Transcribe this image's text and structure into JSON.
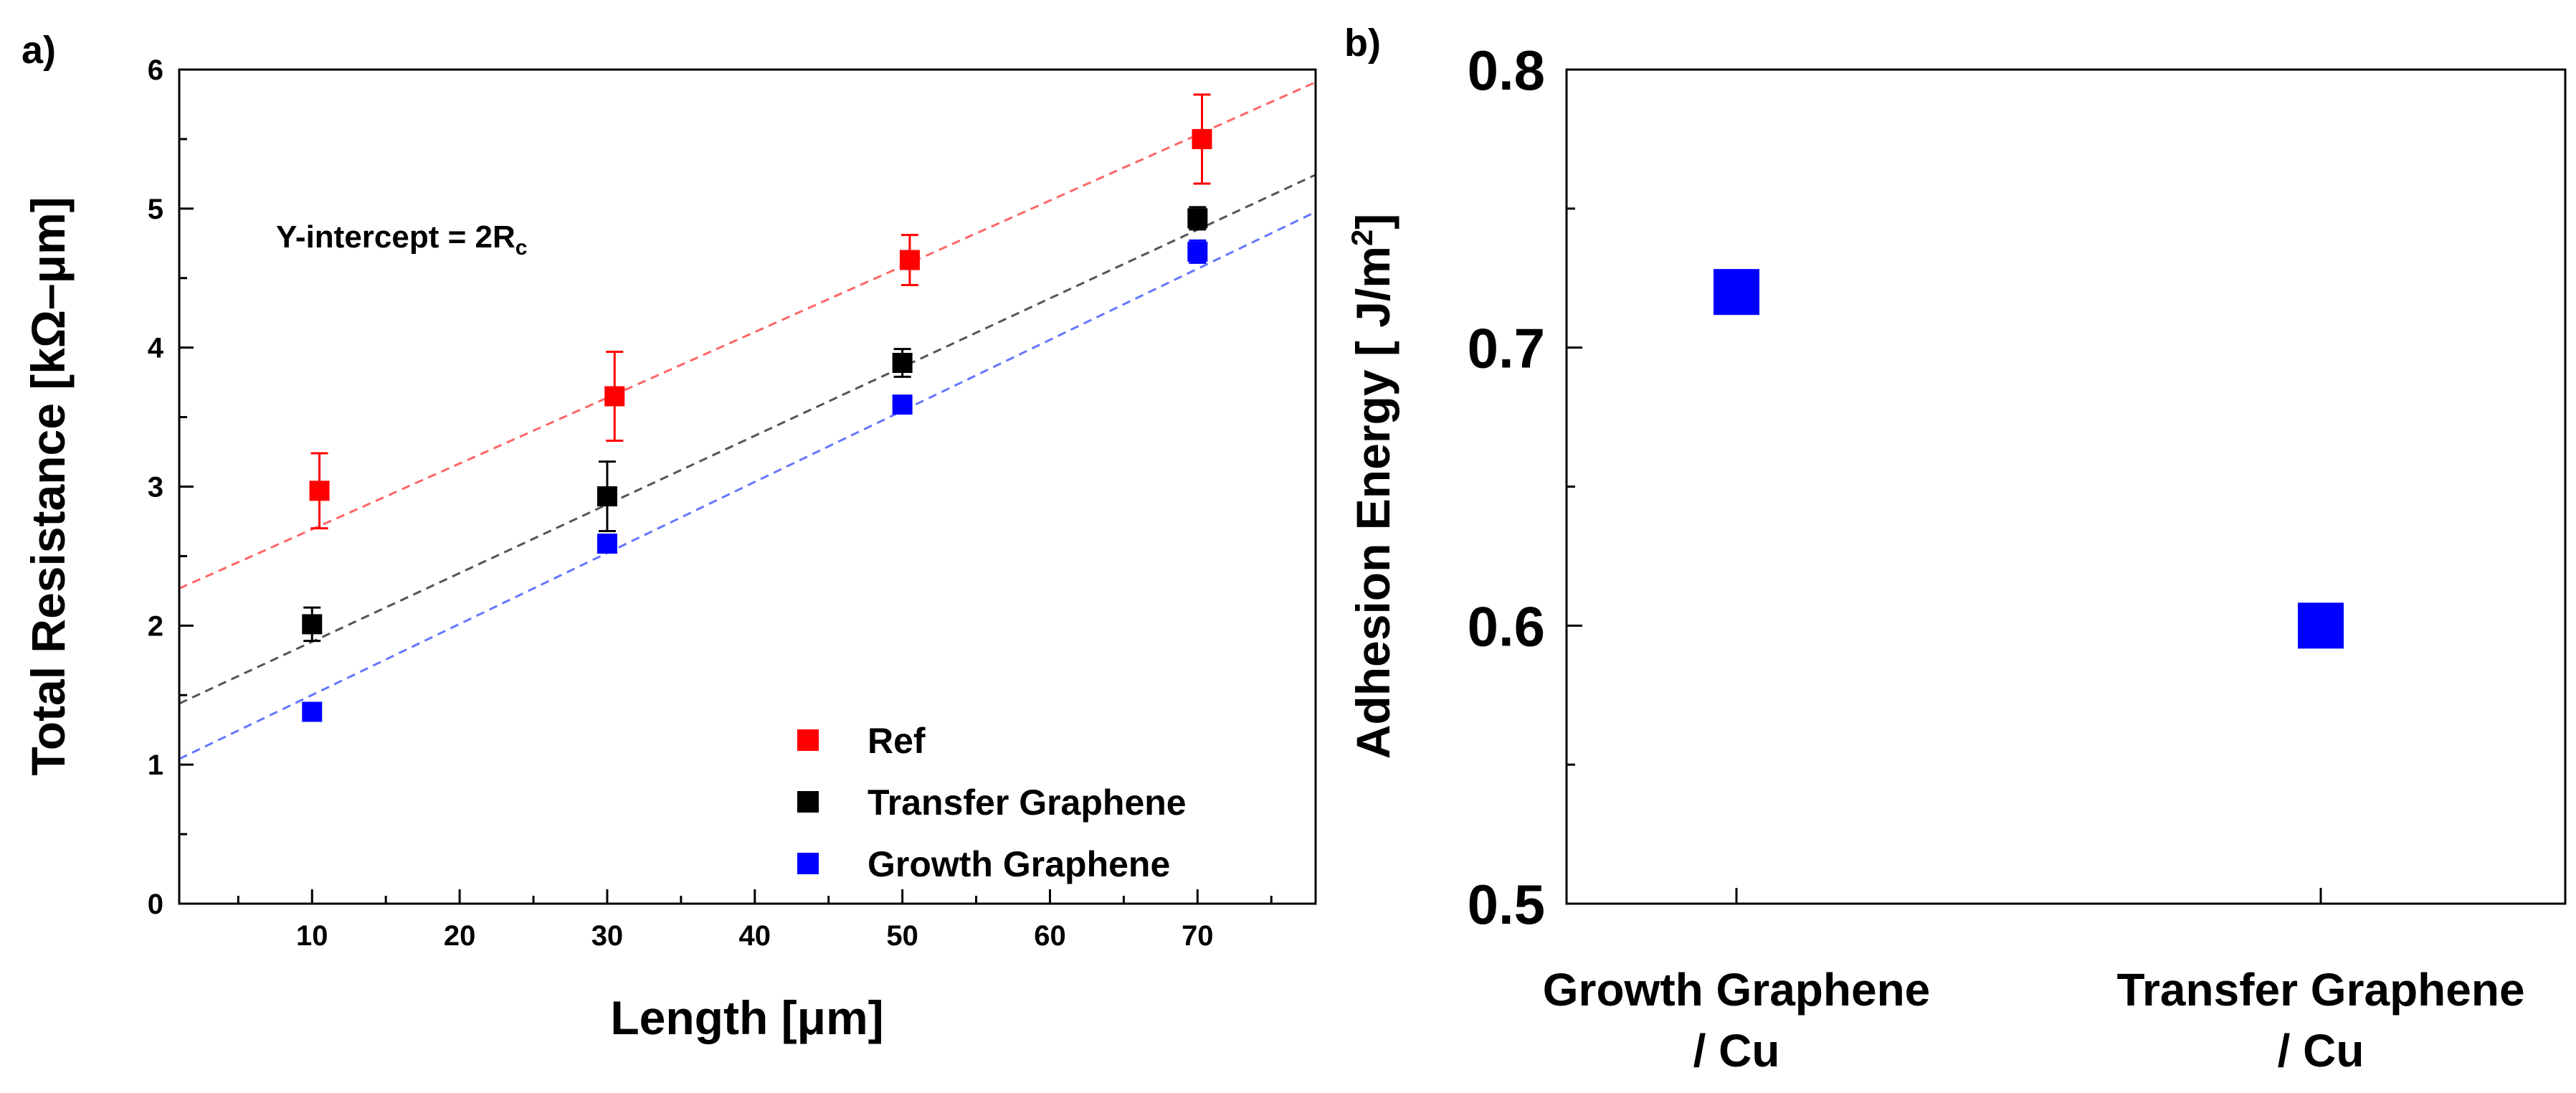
{
  "chart_data": [
    {
      "panel_label": "a)",
      "type": "scatter",
      "xlabel": "Length [μm]",
      "ylabel": "Total Resistance   [kΩ–μm]",
      "xlim": [
        1,
        78
      ],
      "ylim": [
        0,
        6
      ],
      "x_ticks": [
        10,
        20,
        30,
        40,
        50,
        60,
        70
      ],
      "y_ticks": [
        0,
        1,
        2,
        3,
        4,
        5,
        6
      ],
      "annotation": {
        "prefix": "Y-intercept = 2R",
        "subscript": "c"
      },
      "legend_position": "bottom-right",
      "series": [
        {
          "name": "Ref",
          "color": "#ff0000",
          "fit_color": "#ff6666",
          "x": [
            10.5,
            30.5,
            50.5,
            70.3
          ],
          "y": [
            2.97,
            3.65,
            4.63,
            5.5
          ],
          "err": [
            0.27,
            0.32,
            0.18,
            0.32
          ],
          "fit": {
            "slope": 0.0473,
            "intercept": 2.22
          }
        },
        {
          "name": "Transfer Graphene",
          "color": "#000000",
          "fit_color": "#555555",
          "x": [
            10,
            30,
            50,
            70
          ],
          "y": [
            2.01,
            2.93,
            3.89,
            4.93
          ],
          "err": [
            0.12,
            0.25,
            0.1,
            0.08
          ],
          "fit": {
            "slope": 0.0494,
            "intercept": 1.39
          }
        },
        {
          "name": "Growth Graphene",
          "color": "#0000ff",
          "fit_color": "#6677ff",
          "x": [
            10,
            30,
            50,
            70
          ],
          "y": [
            1.38,
            2.59,
            3.59,
            4.69
          ],
          "err": [
            0.05,
            0.05,
            0.03,
            0.08
          ],
          "fit": {
            "slope": 0.0511,
            "intercept": 0.99
          }
        }
      ]
    },
    {
      "panel_label": "b)",
      "type": "scatter",
      "ylabel_prefix": "Adhesion Energy [ J/m",
      "ylabel_sup": "2",
      "ylabel_suffix": "]",
      "ylim": [
        0.5,
        0.8
      ],
      "y_ticks": [
        0.5,
        0.6,
        0.7,
        0.8
      ],
      "y_tick_labels": [
        "0.5",
        "0.6",
        "0.7",
        "0.8"
      ],
      "color": "#0000ff",
      "categories": [
        {
          "line1": "Growth Graphene",
          "line2": "/ Cu",
          "value": 0.72
        },
        {
          "line1": "Transfer Graphene",
          "line2": "/ Cu",
          "value": 0.6
        }
      ]
    }
  ]
}
